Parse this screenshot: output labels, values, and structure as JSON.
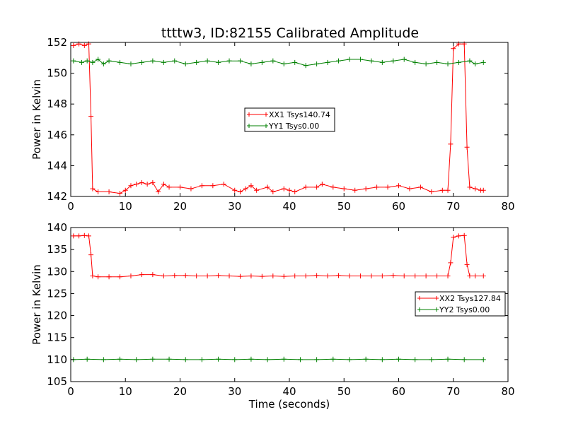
{
  "figure_title": "ttttw3, ID:82155 Calibrated Amplitude",
  "chart_data": [
    {
      "type": "line",
      "title": "ttttw3, ID:82155 Calibrated Amplitude",
      "xlabel": "",
      "ylabel": "Power in Kelvin",
      "xlim": [
        0,
        80
      ],
      "ylim": [
        142,
        152
      ],
      "x_ticks": [
        0,
        10,
        20,
        30,
        40,
        50,
        60,
        70,
        80
      ],
      "y_ticks": [
        142,
        144,
        146,
        148,
        150,
        152
      ],
      "legend_position": "center",
      "series": [
        {
          "name": "XX1 Tsys140.74",
          "color": "#ff0000",
          "marker": "+",
          "points": [
            [
              0.5,
              151.8
            ],
            [
              1.5,
              151.9
            ],
            [
              2.5,
              151.8
            ],
            [
              3.3,
              151.9
            ],
            [
              3.7,
              147.2
            ],
            [
              4.0,
              142.5
            ],
            [
              5,
              142.3
            ],
            [
              7,
              142.3
            ],
            [
              9,
              142.2
            ],
            [
              10,
              142.4
            ],
            [
              11,
              142.7
            ],
            [
              12,
              142.8
            ],
            [
              13,
              142.9
            ],
            [
              14,
              142.8
            ],
            [
              15,
              142.9
            ],
            [
              16,
              142.3
            ],
            [
              17,
              142.8
            ],
            [
              18,
              142.6
            ],
            [
              20,
              142.6
            ],
            [
              22,
              142.5
            ],
            [
              24,
              142.7
            ],
            [
              26,
              142.7
            ],
            [
              28,
              142.8
            ],
            [
              30,
              142.4
            ],
            [
              31,
              142.3
            ],
            [
              32,
              142.5
            ],
            [
              33,
              142.7
            ],
            [
              34,
              142.4
            ],
            [
              36,
              142.6
            ],
            [
              37,
              142.3
            ],
            [
              39,
              142.5
            ],
            [
              40,
              142.4
            ],
            [
              41,
              142.3
            ],
            [
              43,
              142.6
            ],
            [
              45,
              142.6
            ],
            [
              46,
              142.8
            ],
            [
              48,
              142.6
            ],
            [
              50,
              142.5
            ],
            [
              52,
              142.4
            ],
            [
              54,
              142.5
            ],
            [
              56,
              142.6
            ],
            [
              58,
              142.6
            ],
            [
              60,
              142.7
            ],
            [
              62,
              142.5
            ],
            [
              64,
              142.6
            ],
            [
              66,
              142.3
            ],
            [
              68,
              142.4
            ],
            [
              69.0,
              142.4
            ],
            [
              69.5,
              145.4
            ],
            [
              70.0,
              151.6
            ],
            [
              71,
              151.9
            ],
            [
              72,
              151.9
            ],
            [
              72.5,
              145.2
            ],
            [
              73.0,
              142.6
            ],
            [
              74,
              142.5
            ],
            [
              75,
              142.4
            ],
            [
              75.5,
              142.4
            ]
          ]
        },
        {
          "name": "YY1 Tsys0.00",
          "color": "#008000",
          "marker": "+",
          "points": [
            [
              0.5,
              150.8
            ],
            [
              2,
              150.7
            ],
            [
              3,
              150.8
            ],
            [
              4,
              150.7
            ],
            [
              5,
              150.9
            ],
            [
              6,
              150.6
            ],
            [
              7,
              150.8
            ],
            [
              9,
              150.7
            ],
            [
              11,
              150.6
            ],
            [
              13,
              150.7
            ],
            [
              15,
              150.8
            ],
            [
              17,
              150.7
            ],
            [
              19,
              150.8
            ],
            [
              21,
              150.6
            ],
            [
              23,
              150.7
            ],
            [
              25,
              150.8
            ],
            [
              27,
              150.7
            ],
            [
              29,
              150.8
            ],
            [
              31,
              150.8
            ],
            [
              33,
              150.6
            ],
            [
              35,
              150.7
            ],
            [
              37,
              150.8
            ],
            [
              39,
              150.6
            ],
            [
              41,
              150.7
            ],
            [
              43,
              150.5
            ],
            [
              45,
              150.6
            ],
            [
              47,
              150.7
            ],
            [
              49,
              150.8
            ],
            [
              51,
              150.9
            ],
            [
              53,
              150.9
            ],
            [
              55,
              150.8
            ],
            [
              57,
              150.7
            ],
            [
              59,
              150.8
            ],
            [
              61,
              150.9
            ],
            [
              63,
              150.7
            ],
            [
              65,
              150.6
            ],
            [
              67,
              150.7
            ],
            [
              69,
              150.6
            ],
            [
              71,
              150.7
            ],
            [
              73,
              150.8
            ],
            [
              74,
              150.6
            ],
            [
              75.5,
              150.7
            ]
          ]
        }
      ]
    },
    {
      "type": "line",
      "title": "",
      "xlabel": "Time (seconds)",
      "ylabel": "Power in Kelvin",
      "xlim": [
        0,
        80
      ],
      "ylim": [
        105,
        140
      ],
      "x_ticks": [
        0,
        10,
        20,
        30,
        40,
        50,
        60,
        70,
        80
      ],
      "y_ticks": [
        105,
        110,
        115,
        120,
        125,
        130,
        135,
        140
      ],
      "legend_position": "center-right",
      "series": [
        {
          "name": "XX2 Tsys127.84",
          "color": "#ff0000",
          "marker": "+",
          "points": [
            [
              0.5,
              138.1
            ],
            [
              1.5,
              138.1
            ],
            [
              2.5,
              138.2
            ],
            [
              3.3,
              138.1
            ],
            [
              3.7,
              133.8
            ],
            [
              4.0,
              129.0
            ],
            [
              5,
              128.8
            ],
            [
              7,
              128.8
            ],
            [
              9,
              128.8
            ],
            [
              11,
              129.0
            ],
            [
              13,
              129.3
            ],
            [
              15,
              129.3
            ],
            [
              17,
              129.0
            ],
            [
              19,
              129.1
            ],
            [
              21,
              129.1
            ],
            [
              23,
              129.0
            ],
            [
              25,
              129.0
            ],
            [
              27,
              129.1
            ],
            [
              29,
              129.0
            ],
            [
              31,
              128.9
            ],
            [
              33,
              129.0
            ],
            [
              35,
              128.9
            ],
            [
              37,
              129.0
            ],
            [
              39,
              128.9
            ],
            [
              41,
              129.0
            ],
            [
              43,
              129.0
            ],
            [
              45,
              129.1
            ],
            [
              47,
              129.0
            ],
            [
              49,
              129.1
            ],
            [
              51,
              129.0
            ],
            [
              53,
              129.0
            ],
            [
              55,
              129.0
            ],
            [
              57,
              129.0
            ],
            [
              59,
              129.1
            ],
            [
              61,
              129.0
            ],
            [
              63,
              129.0
            ],
            [
              65,
              129.0
            ],
            [
              67,
              129.0
            ],
            [
              69.0,
              129.0
            ],
            [
              69.5,
              132.0
            ],
            [
              70.0,
              137.8
            ],
            [
              71,
              138.1
            ],
            [
              72,
              138.2
            ],
            [
              72.5,
              131.6
            ],
            [
              73.0,
              129.0
            ],
            [
              74,
              129.0
            ],
            [
              75.5,
              129.0
            ]
          ]
        },
        {
          "name": "YY2 Tsys0.00",
          "color": "#008000",
          "marker": "+",
          "points": [
            [
              0.5,
              110.0
            ],
            [
              3,
              110.1
            ],
            [
              6,
              110.0
            ],
            [
              9,
              110.1
            ],
            [
              12,
              110.0
            ],
            [
              15,
              110.1
            ],
            [
              18,
              110.1
            ],
            [
              21,
              110.0
            ],
            [
              24,
              110.0
            ],
            [
              27,
              110.1
            ],
            [
              30,
              110.0
            ],
            [
              33,
              110.1
            ],
            [
              36,
              110.0
            ],
            [
              39,
              110.1
            ],
            [
              42,
              110.0
            ],
            [
              45,
              110.0
            ],
            [
              48,
              110.1
            ],
            [
              51,
              110.0
            ],
            [
              54,
              110.1
            ],
            [
              57,
              110.0
            ],
            [
              60,
              110.1
            ],
            [
              63,
              110.0
            ],
            [
              66,
              110.0
            ],
            [
              69,
              110.1
            ],
            [
              72,
              110.0
            ],
            [
              75.5,
              110.0
            ]
          ]
        }
      ]
    }
  ]
}
